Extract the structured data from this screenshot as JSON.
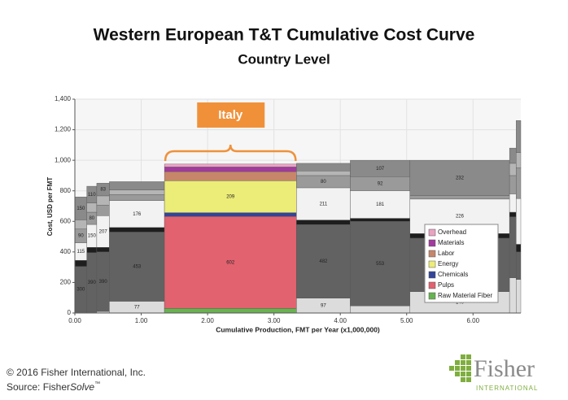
{
  "chart_data": {
    "type": "cost_curve",
    "title": "Western European T&T Cumulative Cost Curve",
    "subtitle": "Country Level",
    "x_label": "Cumulative Production, FMT per Year (x1,000,000)",
    "y_label": "Cost, USD per FMT",
    "annotation": "Italy",
    "categories": [
      null,
      null,
      null,
      null,
      "Italy",
      null,
      null,
      null,
      null,
      null
    ],
    "bins": [
      0,
      0.18,
      0.33,
      0.52,
      1.35,
      3.34,
      4.15,
      5.05,
      6.55,
      6.65,
      6.72
    ],
    "series": [
      {
        "name": "Overhead",
        "color": "#e9a3c3",
        "muted_color": "#8a8a8a",
        "values": [
          150,
          110,
          83,
          54,
          19,
          50,
          107,
          232,
          100,
          210
        ]
      },
      {
        "name": "Materials",
        "color": "#a33a9e",
        "muted_color": "#b5b5b5",
        "values": [
          60,
          60,
          60,
          30,
          30,
          30,
          0,
          0,
          80,
          100
        ]
      },
      {
        "name": "Labor",
        "color": "#c7866a",
        "muted_color": "#9a9a9a",
        "values": [
          90,
          80,
          70,
          40,
          60,
          80,
          92,
          22,
          120,
          200
        ]
      },
      {
        "name": "Energy",
        "color": "#ecec78",
        "muted_color": "#f2f2f2",
        "values": [
          115,
          150,
          207,
          176,
          209,
          211,
          181,
          226,
          120,
          300
        ]
      },
      {
        "name": "Chemicals",
        "color": "#33449a",
        "muted_color": "#1e1e1e",
        "values": [
          40,
          35,
          30,
          30,
          25,
          30,
          20,
          30,
          30,
          50
        ]
      },
      {
        "name": "Pulps",
        "color": "#e2626f",
        "muted_color": "#626262",
        "values": [
          300,
          390,
          390,
          453,
          602,
          482,
          553,
          350,
          400,
          180
        ]
      },
      {
        "name": "Raw Material Fiber",
        "color": "#66b34f",
        "muted_color": "#dcdcdc",
        "values": [
          5,
          5,
          10,
          77,
          30,
          97,
          47,
          140,
          230,
          220
        ]
      }
    ],
    "xlim": [
      0,
      6.72
    ],
    "ylim": [
      0,
      1400
    ],
    "xticks": [
      {
        "value": 0,
        "label": "0.00"
      },
      {
        "value": 1,
        "label": "1.00"
      },
      {
        "value": 2,
        "label": "2.00"
      },
      {
        "value": 3,
        "label": "3.00"
      },
      {
        "value": 4,
        "label": "4.00"
      },
      {
        "value": 5,
        "label": "5.00"
      },
      {
        "value": 6,
        "label": "6.00"
      }
    ],
    "yticks": [
      0,
      200,
      400,
      600,
      800,
      {
        "value": 1000,
        "label": "1,000"
      },
      {
        "value": 1200,
        "label": "1,200"
      },
      {
        "value": 1400,
        "label": "1,400"
      }
    ],
    "grid": true
  },
  "footer": {
    "copyright": "© 2016 Fisher International, Inc.",
    "source_prefix": "Source: Fisher",
    "source_italic": "Solve",
    "source_mark": "™"
  },
  "logo": {
    "name": "Fisher",
    "tagline": "INTERNATIONAL"
  }
}
